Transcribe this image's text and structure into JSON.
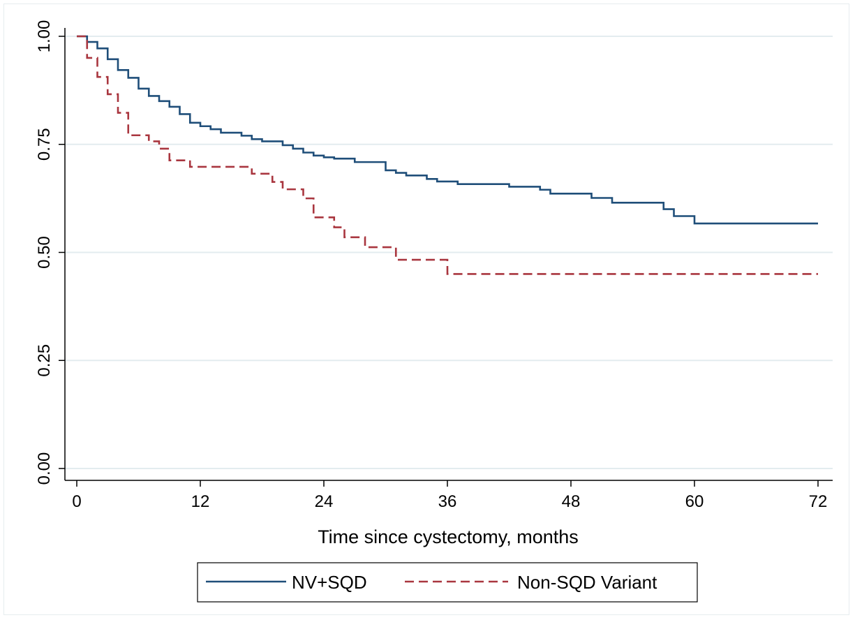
{
  "chart_data": {
    "type": "line",
    "title": "",
    "xlabel": "Time since cystectomy, months",
    "ylabel": "",
    "xlim": [
      0,
      72
    ],
    "ylim": [
      0,
      1
    ],
    "x_ticks": [
      "0",
      "12",
      "24",
      "36",
      "48",
      "60",
      "72"
    ],
    "y_ticks": [
      "0.00",
      "0.25",
      "0.50",
      "0.75",
      "1.00"
    ],
    "grid": "horizontal",
    "legend_position": "bottom",
    "series": [
      {
        "name": "NV+SQD",
        "color": "#1f4e79",
        "dash": "solid",
        "steps": [
          [
            0,
            1.0
          ],
          [
            1,
            0.987
          ],
          [
            2,
            0.972
          ],
          [
            3,
            0.947
          ],
          [
            4,
            0.922
          ],
          [
            5,
            0.904
          ],
          [
            6,
            0.879
          ],
          [
            7,
            0.862
          ],
          [
            8,
            0.85
          ],
          [
            9,
            0.837
          ],
          [
            10,
            0.82
          ],
          [
            11,
            0.8
          ],
          [
            12,
            0.792
          ],
          [
            13,
            0.785
          ],
          [
            14,
            0.777
          ],
          [
            16,
            0.77
          ],
          [
            17,
            0.762
          ],
          [
            18,
            0.757
          ],
          [
            20,
            0.748
          ],
          [
            21,
            0.74
          ],
          [
            22,
            0.731
          ],
          [
            23,
            0.724
          ],
          [
            24,
            0.72
          ],
          [
            25,
            0.717
          ],
          [
            27,
            0.709
          ],
          [
            30,
            0.69
          ],
          [
            31,
            0.684
          ],
          [
            32,
            0.678
          ],
          [
            34,
            0.67
          ],
          [
            35,
            0.664
          ],
          [
            37,
            0.658
          ],
          [
            42,
            0.652
          ],
          [
            45,
            0.645
          ],
          [
            46,
            0.636
          ],
          [
            50,
            0.626
          ],
          [
            52,
            0.615
          ],
          [
            57,
            0.6
          ],
          [
            58,
            0.584
          ],
          [
            60,
            0.567
          ],
          [
            72,
            0.567
          ]
        ]
      },
      {
        "name": "Non-SQD Variant",
        "color": "#a9363f",
        "dash": "dashed",
        "steps": [
          [
            0,
            1.0
          ],
          [
            1,
            0.95
          ],
          [
            2,
            0.906
          ],
          [
            3,
            0.866
          ],
          [
            4,
            0.823
          ],
          [
            5,
            0.771
          ],
          [
            7,
            0.757
          ],
          [
            8,
            0.74
          ],
          [
            9,
            0.713
          ],
          [
            11,
            0.698
          ],
          [
            17,
            0.682
          ],
          [
            19,
            0.663
          ],
          [
            20,
            0.646
          ],
          [
            22,
            0.625
          ],
          [
            23,
            0.581
          ],
          [
            25,
            0.558
          ],
          [
            26,
            0.535
          ],
          [
            28,
            0.512
          ],
          [
            31,
            0.483
          ],
          [
            36,
            0.45
          ],
          [
            72,
            0.45
          ]
        ]
      }
    ]
  }
}
